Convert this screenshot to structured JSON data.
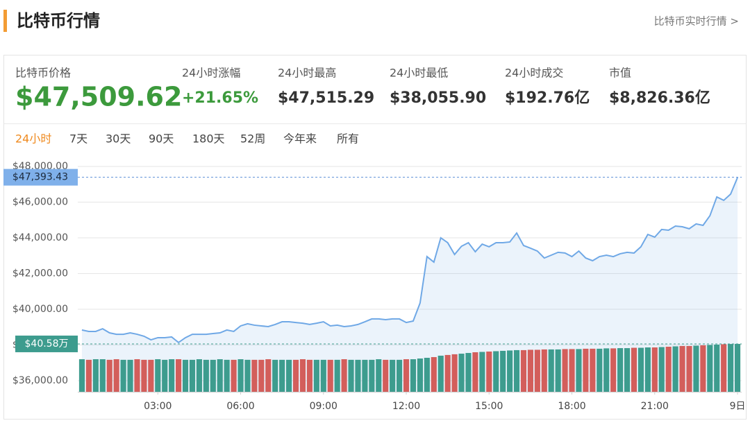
{
  "header": {
    "title": "比特币行情",
    "link": "比特币实时行情 >"
  },
  "stats": [
    {
      "label": "比特币价格",
      "value": "$47,509.62"
    },
    {
      "label": "24小时涨幅",
      "value": "+21.65%"
    },
    {
      "label": "24小时最高",
      "value": "$47,515.29"
    },
    {
      "label": "24小时最低",
      "value": "$38,055.90"
    },
    {
      "label": "24小时成交",
      "value": "$192.76亿"
    },
    {
      "label": "市值",
      "value": "$8,826.36亿"
    }
  ],
  "tabs": [
    "24小时",
    "7天",
    "30天",
    "90天",
    "180天",
    "52周",
    "今年来",
    "所有"
  ],
  "chart_data": {
    "type": "line",
    "x": [
      0.25,
      0.5,
      0.75,
      1,
      1.25,
      1.5,
      1.75,
      2,
      2.25,
      2.5,
      2.75,
      3,
      3.25,
      3.5,
      3.75,
      4,
      4.25,
      4.5,
      4.75,
      5,
      5.25,
      5.5,
      5.75,
      6,
      6.25,
      6.5,
      6.75,
      7,
      7.25,
      7.5,
      7.75,
      8,
      8.25,
      8.5,
      8.75,
      9,
      9.25,
      9.5,
      9.75,
      10,
      10.25,
      10.5,
      10.75,
      11,
      11.25,
      11.5,
      11.75,
      12,
      12.25,
      12.5,
      12.75,
      13,
      13.25,
      13.5,
      13.75,
      14,
      14.25,
      14.5,
      14.75,
      15,
      15.25,
      15.5,
      15.75,
      16,
      16.25,
      16.5,
      16.75,
      17,
      17.25,
      17.5,
      17.75,
      18,
      18.25,
      18.5,
      18.75,
      19,
      19.25,
      19.5,
      19.75,
      20,
      20.25,
      20.5,
      20.75,
      21,
      21.25,
      21.5,
      21.75,
      22,
      22.25,
      22.5,
      22.75,
      23,
      23.25,
      23.5,
      23.75,
      24
    ],
    "series": [
      {
        "color": "#6fa8e6",
        "values": [
          38840,
          38760,
          38760,
          38910,
          38680,
          38600,
          38600,
          38680,
          38600,
          38490,
          38290,
          38410,
          38410,
          38450,
          38140,
          38410,
          38600,
          38600,
          38600,
          38640,
          38680,
          38840,
          38760,
          39070,
          39190,
          39110,
          39070,
          39030,
          39150,
          39300,
          39300,
          39260,
          39220,
          39150,
          39220,
          39300,
          39070,
          39110,
          39030,
          39070,
          39150,
          39300,
          39460,
          39460,
          39420,
          39460,
          39460,
          39260,
          39340,
          40350,
          42950,
          42640,
          44000,
          43730,
          43070,
          43530,
          43730,
          43220,
          43650,
          43500,
          43730,
          43730,
          43770,
          44270,
          43570,
          43420,
          43260,
          42870,
          43030,
          43190,
          43150,
          42950,
          43260,
          42870,
          42720,
          42950,
          43030,
          42950,
          43110,
          43190,
          43150,
          43500,
          44190,
          44040,
          44470,
          44430,
          44660,
          44620,
          44510,
          44780,
          44700,
          45240,
          46290,
          46100,
          46450,
          47380
        ]
      },
      {
        "type": "bar",
        "axis": "y2",
        "up_color": "#3d9c8e",
        "down_color": "#d35e5b",
        "values": [
          27.6,
          27.1,
          27.6,
          27.6,
          27.1,
          27.6,
          27.1,
          27.1,
          27.6,
          27.1,
          27.1,
          27.6,
          27.1,
          27.6,
          27.6,
          27.1,
          27.1,
          27.6,
          27.1,
          27.1,
          27.6,
          27.1,
          27.1,
          27.6,
          27.1,
          27.1,
          27.1,
          27.6,
          27.1,
          27.1,
          27.1,
          27.1,
          27.6,
          27.1,
          27.1,
          27.1,
          27.1,
          27.1,
          27.6,
          27.1,
          27.1,
          27.1,
          27.1,
          27.6,
          27.1,
          27.1,
          27.1,
          27.6,
          27.6,
          28.2,
          28.8,
          29.4,
          30.6,
          31.2,
          31.8,
          32.3,
          32.9,
          33.5,
          33.8,
          34.1,
          34.4,
          34.7,
          35.0,
          35.3,
          35.3,
          35.6,
          35.6,
          35.9,
          35.9,
          35.9,
          36.2,
          36.2,
          36.2,
          36.5,
          36.5,
          36.5,
          36.8,
          36.8,
          37.0,
          37.0,
          37.3,
          37.3,
          37.6,
          37.6,
          37.9,
          38.2,
          38.5,
          38.8,
          38.8,
          39.1,
          39.4,
          39.7,
          40.0,
          40.3,
          40.5,
          40.58
        ]
      }
    ],
    "xlim": [
      0.1,
      24.15
    ],
    "xticks": [
      {
        "value": 3,
        "label": "03:00"
      },
      {
        "value": 6,
        "label": "06:00"
      },
      {
        "value": 9,
        "label": "09:00"
      },
      {
        "value": 12,
        "label": "12:00"
      },
      {
        "value": 15,
        "label": "15:00"
      },
      {
        "value": 18,
        "label": "18:00"
      },
      {
        "value": 21,
        "label": "21:00"
      },
      {
        "value": 24,
        "label": "9日"
      }
    ],
    "ylim": [
      35380,
      48000
    ],
    "yticks": [
      {
        "value": 36000,
        "label": "$36,000.00"
      },
      {
        "value": 38000,
        "label": "$38,000.00"
      },
      {
        "value": 40000,
        "label": "$40,000.00"
      },
      {
        "value": 42000,
        "label": "$42,000.00"
      },
      {
        "value": 44000,
        "label": "$44,000.00"
      },
      {
        "value": 46000,
        "label": "$46,000.00"
      },
      {
        "value": 48000,
        "label": "$48,000.00"
      }
    ],
    "y2lim": [
      0,
      191
    ],
    "grid": true,
    "price_marker": {
      "value": 47393.43,
      "label": "$47,393.43"
    },
    "volume_marker": {
      "value": 40.58,
      "label": "$40.58万"
    }
  }
}
